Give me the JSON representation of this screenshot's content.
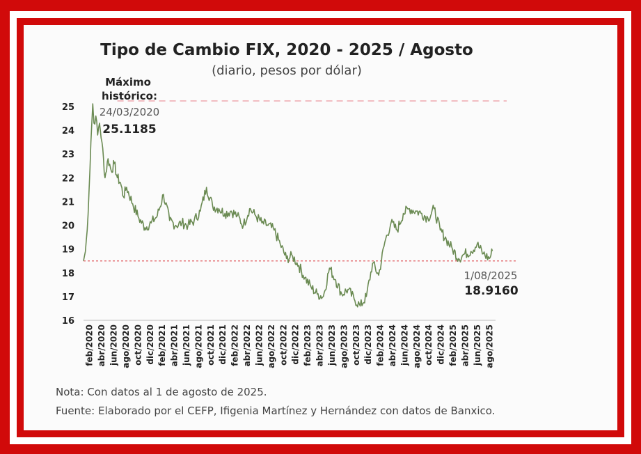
{
  "colors": {
    "frame": "#d10a0a",
    "line": "#6a8a52",
    "max_line": "#f0b0b6",
    "base_line": "#e0555a",
    "text": "#222222",
    "muted": "#555555"
  },
  "chart_data": {
    "type": "line",
    "title": "Tipo de Cambio FIX, 2020 - 2025 / Agosto",
    "subtitle": "(diario, pesos por dólar)",
    "xlabel": "",
    "ylabel": "",
    "ylim": [
      16,
      25.3
    ],
    "yticks": [
      "25",
      "24",
      "23",
      "22",
      "21",
      "20",
      "19",
      "18",
      "17",
      "16"
    ],
    "x_range": [
      0,
      67
    ],
    "x_tick_labels": [
      "feb/2020",
      "abr/2020",
      "jun/2020",
      "ago/2020",
      "oct/2020",
      "dic/2020",
      "feb/2021",
      "abr/2021",
      "jun/2021",
      "ago/2021",
      "oct/2021",
      "dic/2021",
      "feb/2022",
      "abr/2022",
      "jun/2022",
      "ago/2022",
      "oct/2022",
      "dic/2022",
      "feb/2023",
      "abr/2023",
      "jun/2023",
      "ago/2023",
      "oct/2023",
      "dic/2023",
      "feb/2024",
      "abr/2024",
      "jun/2024",
      "ago/2024",
      "oct/2024",
      "dic/2024",
      "feb/2025",
      "abr/2025",
      "jun/2025",
      "ago/2025"
    ],
    "series": [
      {
        "name": "Tipo de Cambio FIX",
        "x": [
          0,
          0.3,
          0.6,
          0.9,
          1.2,
          1.5,
          1.7,
          2.0,
          2.3,
          2.6,
          3.0,
          3.5,
          4.0,
          4.5,
          5.0,
          5.5,
          6.0,
          6.5,
          7,
          8,
          9,
          10,
          11,
          12,
          13,
          14,
          15,
          16,
          17,
          18,
          19,
          20,
          21,
          22,
          23,
          24,
          25,
          26,
          27,
          28,
          29,
          30,
          31,
          32,
          33,
          34,
          35,
          36,
          37,
          38,
          39,
          40,
          41,
          42,
          43,
          44,
          45,
          46,
          47,
          48,
          49,
          50,
          51,
          52,
          53,
          54,
          55,
          56,
          57,
          58,
          59,
          60,
          61,
          62,
          63,
          64,
          65,
          66,
          66.5
        ],
        "y": [
          18.5,
          18.9,
          19.8,
          21.5,
          23.5,
          25.1185,
          24.3,
          24.6,
          23.8,
          24.3,
          23.5,
          22.0,
          22.8,
          22.3,
          22.6,
          22.0,
          21.8,
          21.2,
          21.6,
          20.9,
          20.3,
          19.9,
          20.1,
          20.4,
          21.3,
          20.2,
          20.0,
          20.1,
          20.0,
          20.2,
          20.6,
          21.6,
          20.8,
          20.7,
          20.5,
          20.6,
          20.4,
          20.0,
          20.7,
          20.4,
          20.1,
          20.0,
          19.8,
          19.2,
          18.6,
          18.7,
          18.3,
          17.8,
          17.4,
          17.1,
          17.0,
          18.2,
          17.7,
          17.1,
          17.3,
          16.9,
          16.6,
          17.0,
          18.4,
          17.9,
          19.3,
          20.1,
          19.8,
          20.5,
          20.7,
          20.6,
          20.5,
          20.3,
          20.7,
          19.8,
          19.4,
          19.0,
          18.6,
          18.8,
          18.9,
          19.2,
          18.8,
          18.6,
          18.916
        ]
      }
    ],
    "reference_lines": [
      {
        "name": "maximo",
        "y": 25.1185
      },
      {
        "name": "base",
        "y": 18.5
      }
    ],
    "annotations": {
      "max_label_line1": "Máximo",
      "max_label_line2": "histórico:",
      "max_date": "24/03/2020",
      "max_value": "25.1185",
      "last_date": "1/08/2025",
      "last_value": "18.9160"
    }
  },
  "notes": {
    "nota": "Nota: Con datos al 1 de agosto de 2025.",
    "fuente": "Fuente: Elaborado por el CEFP, Ifigenia Martínez y Hernández con datos de Banxico."
  }
}
